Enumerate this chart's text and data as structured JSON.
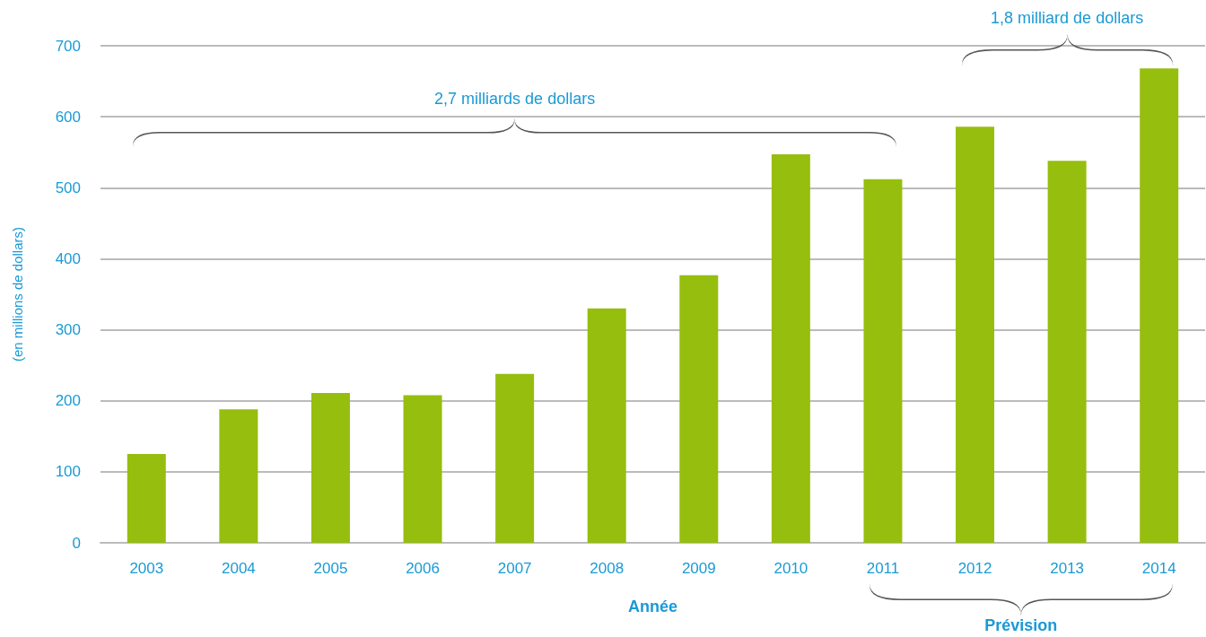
{
  "chart_data": {
    "type": "bar",
    "xlabel": "Année",
    "ylabel": "(en millions de dollars)",
    "categories": [
      "2003",
      "2004",
      "2005",
      "2006",
      "2007",
      "2008",
      "2009",
      "2010",
      "2011",
      "2012",
      "2013",
      "2014"
    ],
    "values": [
      125,
      188,
      211,
      208,
      238,
      330,
      377,
      547,
      512,
      586,
      538,
      668
    ],
    "color": "#96be0e",
    "ylim": [
      0,
      700
    ],
    "yticks": [
      0,
      100,
      200,
      300,
      400,
      500,
      600,
      700
    ],
    "grid": "y",
    "annotations": [
      "2,7 milliards de dollars",
      "1,8 milliard de dollars",
      "Prévision"
    ]
  }
}
